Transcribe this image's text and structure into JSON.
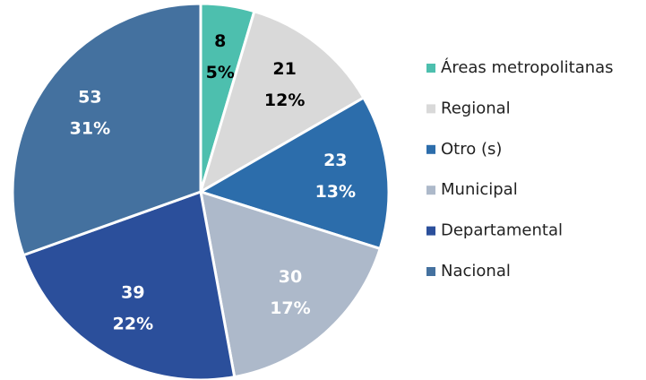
{
  "chart_data": {
    "type": "pie",
    "categories": [
      "Áreas metropolitanas",
      "Regional",
      "Otro (s)",
      "Municipal",
      "Departamental",
      "Nacional"
    ],
    "values": [
      8,
      21,
      23,
      30,
      39,
      53
    ],
    "percent_labels": [
      "5%",
      "12%",
      "13%",
      "17%",
      "22%",
      "31%"
    ],
    "colors": [
      "#4dbfae",
      "#d9d9d9",
      "#2c6dab",
      "#adb9ca",
      "#2b4f9b",
      "#44719f"
    ],
    "label_colors": [
      "#000000",
      "#000000",
      "#ffffff",
      "#ffffff",
      "#ffffff",
      "#ffffff"
    ],
    "legend": "right"
  }
}
